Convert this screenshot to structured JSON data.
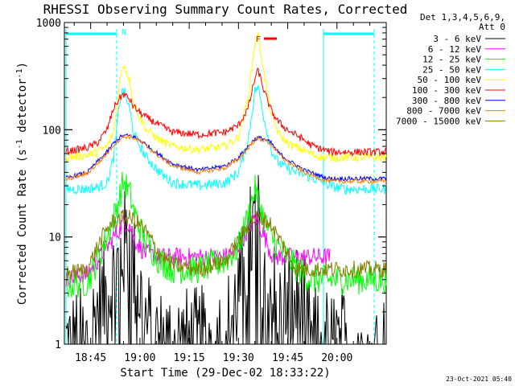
{
  "chart_data": {
    "type": "line",
    "title": "RHESSI Observing Summary Count Rates, Corrected",
    "xlabel": "Start Time (29-Dec-02 18:33:22)",
    "ylabel_main": "Corrected Count Rate (s",
    "ylabel_sup1": "-1",
    "ylabel_mid": " detector",
    "ylabel_sup2": "-1",
    "ylabel_end": ")",
    "yscale": "log",
    "ylim": [
      1,
      1000
    ],
    "xlim_min": [
      37,
      135
    ],
    "x_ticks": [
      {
        "v": 45,
        "label": "18:45"
      },
      {
        "v": 60,
        "label": "19:00"
      },
      {
        "v": 75,
        "label": "19:15"
      },
      {
        "v": 90,
        "label": "19:30"
      },
      {
        "v": 105,
        "label": "19:45"
      },
      {
        "v": 120,
        "label": "20:00"
      }
    ],
    "y_ticks": [
      {
        "v": 1,
        "label": "1"
      },
      {
        "v": 10,
        "label": "10"
      },
      {
        "v": 100,
        "label": "100"
      },
      {
        "v": 1000,
        "label": "1000"
      }
    ],
    "legend_header": [
      "Det 1,3,4,5,6,9,",
      "Att 0"
    ],
    "series": [
      {
        "name": "3 - 6 keV",
        "color": "#000000",
        "x": [
          37,
          44,
          47,
          50,
          52,
          54,
          55,
          57,
          58,
          60,
          62,
          66,
          70,
          78,
          86,
          90,
          93,
          95,
          96,
          98,
          100,
          102,
          104,
          106,
          108,
          110,
          112,
          114,
          116,
          118,
          120,
          122,
          124,
          126,
          128,
          130,
          132,
          135
        ],
        "values": [
          1,
          1,
          2,
          3,
          4,
          6,
          8,
          9,
          5,
          3,
          1.5,
          1,
          1,
          1,
          1.2,
          3,
          8,
          13,
          12,
          6,
          3,
          2,
          2.5,
          2.5,
          2.5,
          2,
          1,
          1,
          1,
          1,
          1,
          1,
          1,
          1,
          1,
          1,
          1,
          1
        ]
      },
      {
        "name": "6 - 12 keV",
        "color": "#ff00ff",
        "x": [
          37,
          44,
          47,
          50,
          52,
          54,
          55,
          57,
          58,
          60,
          62,
          66,
          70,
          78,
          86,
          90,
          93,
          95,
          96,
          98,
          100,
          102,
          104,
          106,
          108,
          110,
          112,
          114,
          116,
          118
        ],
        "values": [
          4,
          4.5,
          6,
          8,
          10,
          12,
          14,
          13,
          10,
          8,
          7,
          6.5,
          6.5,
          6.5,
          6.5,
          8,
          12,
          15,
          14,
          10,
          7,
          6.5,
          6.5,
          6.5,
          6.5,
          6.5,
          6.5,
          6.5,
          6.5,
          6.5
        ]
      },
      {
        "name": "12 - 25 keV",
        "color": "#00ff00",
        "x": [
          37,
          44,
          47,
          50,
          52,
          54,
          55,
          57,
          58,
          60,
          62,
          66,
          70,
          78,
          86,
          90,
          93,
          95,
          96,
          98,
          100,
          102,
          104,
          106,
          108,
          110,
          112,
          114,
          116,
          118,
          120,
          122,
          124,
          126,
          128,
          130,
          132,
          135
        ],
        "values": [
          3.5,
          3.8,
          6,
          10,
          15,
          25,
          33,
          25,
          18,
          12,
          9,
          6,
          5,
          5,
          6,
          8,
          16,
          28,
          22,
          14,
          10,
          8,
          7,
          6,
          5,
          4.5,
          4,
          4,
          4,
          4,
          4,
          4,
          4,
          4,
          4,
          4,
          4,
          4
        ]
      },
      {
        "name": "25 - 50 keV",
        "color": "#00ffff",
        "x": [
          37,
          44,
          47,
          50,
          52,
          54,
          55,
          57,
          58,
          60,
          62,
          66,
          70,
          78,
          86,
          90,
          93,
          95,
          96,
          98,
          100,
          102,
          104,
          106,
          108,
          110,
          112,
          114,
          116,
          118,
          120,
          122,
          124,
          126,
          128,
          130,
          132,
          135
        ],
        "values": [
          28,
          28,
          29,
          32,
          55,
          200,
          240,
          150,
          95,
          70,
          55,
          40,
          32,
          30,
          32,
          40,
          80,
          230,
          250,
          120,
          65,
          50,
          45,
          42,
          40,
          38,
          36,
          34,
          32,
          30,
          29,
          28,
          28,
          28,
          28,
          28,
          28,
          28
        ]
      },
      {
        "name": "50 - 100 keV",
        "color": "#ffff00",
        "x": [
          37,
          44,
          47,
          50,
          52,
          54,
          55,
          57,
          58,
          60,
          62,
          66,
          70,
          78,
          86,
          90,
          93,
          95,
          96,
          98,
          100,
          102,
          104,
          106,
          108,
          110,
          112,
          114,
          116,
          118,
          120,
          122,
          124,
          126,
          128,
          130,
          132,
          135
        ],
        "values": [
          55,
          58,
          62,
          70,
          95,
          300,
          420,
          280,
          180,
          130,
          100,
          80,
          70,
          65,
          70,
          85,
          200,
          650,
          780,
          300,
          140,
          95,
          80,
          72,
          68,
          64,
          60,
          57,
          55,
          55,
          55,
          55,
          55,
          55,
          55,
          55,
          55,
          55
        ]
      },
      {
        "name": "100 - 300 keV",
        "color": "#ff0000",
        "x": [
          37,
          44,
          47,
          50,
          52,
          54,
          55,
          57,
          58,
          60,
          62,
          66,
          70,
          78,
          86,
          90,
          93,
          95,
          96,
          98,
          100,
          102,
          104,
          106,
          108,
          110,
          112,
          114,
          116,
          118,
          120,
          122,
          124,
          126,
          128,
          130,
          132,
          135
        ],
        "values": [
          62,
          68,
          75,
          100,
          160,
          200,
          215,
          190,
          165,
          145,
          130,
          110,
          95,
          90,
          95,
          110,
          160,
          300,
          360,
          220,
          150,
          120,
          105,
          95,
          88,
          80,
          72,
          68,
          65,
          62,
          62,
          62,
          62,
          62,
          62,
          62,
          62,
          62
        ]
      },
      {
        "name": "300 - 800 keV",
        "color": "#0000ff",
        "x": [
          37,
          44,
          47,
          50,
          52,
          54,
          55,
          57,
          58,
          60,
          62,
          66,
          70,
          78,
          86,
          90,
          93,
          95,
          96,
          98,
          100,
          102,
          104,
          106,
          108,
          110,
          112,
          114,
          116,
          118,
          120,
          122,
          124,
          126,
          128,
          130,
          132,
          135
        ],
        "values": [
          35,
          40,
          50,
          62,
          75,
          85,
          88,
          88,
          86,
          80,
          72,
          58,
          48,
          42,
          46,
          55,
          70,
          82,
          84,
          82,
          75,
          62,
          55,
          50,
          46,
          42,
          40,
          38,
          36,
          35,
          35,
          35,
          35,
          35,
          35,
          35,
          35,
          35
        ]
      },
      {
        "name": "800 - 7000 keV",
        "color": "#ff8000",
        "x": [
          37,
          44,
          47,
          50,
          52,
          54,
          55,
          57,
          58,
          60,
          62,
          66,
          70,
          78,
          86,
          90,
          93,
          95,
          96,
          98,
          100,
          102,
          104,
          106,
          108,
          110,
          112,
          114,
          116,
          118,
          120,
          122,
          124,
          126,
          128,
          130,
          132,
          135
        ],
        "values": [
          34,
          39,
          48,
          60,
          72,
          82,
          86,
          86,
          84,
          78,
          70,
          56,
          46,
          40,
          44,
          53,
          68,
          80,
          82,
          80,
          73,
          60,
          53,
          48,
          44,
          40,
          38,
          36,
          34,
          33,
          33,
          33,
          33,
          33,
          33,
          33,
          33,
          33
        ]
      },
      {
        "name": "7000 - 15000 keV",
        "color": "#808000",
        "x": [
          37,
          44,
          47,
          50,
          52,
          54,
          55,
          57,
          58,
          60,
          62,
          66,
          70,
          78,
          86,
          90,
          93,
          95,
          96,
          98,
          100,
          102,
          104,
          106,
          108,
          110,
          112,
          114,
          116,
          118,
          120,
          122,
          124,
          126,
          128,
          130,
          132,
          135
        ],
        "values": [
          4.5,
          5,
          8,
          12,
          14,
          15,
          15,
          15,
          14.5,
          13,
          11,
          7,
          5.5,
          5,
          6,
          9,
          13,
          15,
          15,
          14.5,
          13,
          10,
          8,
          6,
          5,
          5,
          5,
          5,
          5,
          5,
          5,
          5,
          5,
          5,
          5,
          5,
          5,
          5
        ]
      }
    ],
    "flags": [
      {
        "label": "N",
        "color": "#00ffff"
      },
      {
        "label": "F",
        "color": "#ff0000"
      }
    ],
    "timestamp": "23-Oct-2021 05:40"
  }
}
